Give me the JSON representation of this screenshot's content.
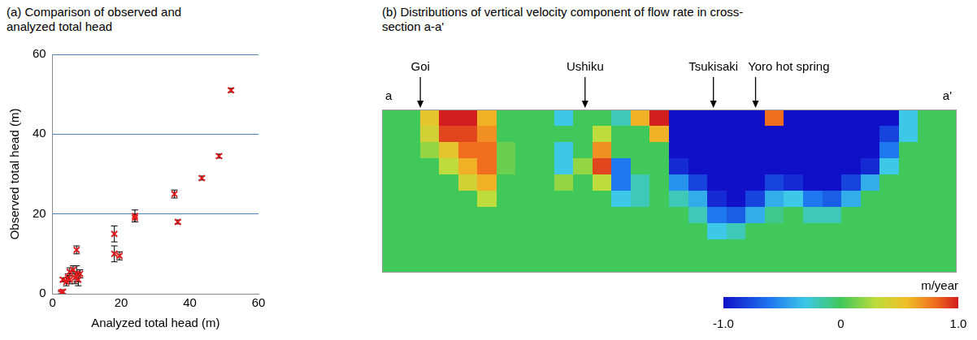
{
  "chart_data": [
    {
      "type": "scatter",
      "title": "(a) Comparison of observed and analyzed total head",
      "x_label": "Analyzed total head (m)",
      "y_label": "Observed total head (m)",
      "x": [
        52,
        48.5,
        43.5,
        35.5,
        36.5,
        24,
        24,
        18,
        18,
        19.5,
        7,
        7,
        6,
        5,
        5,
        4,
        3,
        3,
        2.5,
        6.5,
        4.5,
        7.5,
        8
      ],
      "values": [
        51,
        34.5,
        29,
        25,
        18,
        19.5,
        19,
        15,
        10,
        9.5,
        11,
        5,
        6,
        5.5,
        3.5,
        3,
        3.5,
        0.5,
        0.3,
        4,
        4,
        3.5,
        5
      ],
      "errors": [
        0.5,
        0.5,
        0.5,
        1,
        0.5,
        1.5,
        1,
        2,
        2,
        1,
        1,
        2,
        1,
        1,
        1,
        1,
        0.5,
        0.5,
        0.3,
        1.5,
        1,
        1.5,
        1
      ],
      "color": "#e31a1c",
      "marker": "x",
      "xlim": [
        0,
        60
      ],
      "ylim": [
        0,
        60
      ],
      "xticks": [
        0,
        20,
        40,
        60
      ],
      "yticks": [
        0,
        20,
        40,
        60
      ],
      "grid": "y"
    },
    {
      "type": "heatmap",
      "title": "(b) Distributions of vertical velocity component of flow rate in cross-section a-a'",
      "section_ends": [
        "a",
        "a'"
      ],
      "locations": [
        {
          "name": "Goi",
          "x": 2.0
        },
        {
          "name": "Ushiku",
          "x": 10.6
        },
        {
          "name": "Tsukisaki",
          "x": 17.3
        },
        {
          "name": "Yoro hot spring",
          "x": 19.5
        }
      ],
      "cells": [
        [
          0,
          0,
          0.5,
          1,
          1,
          0.6,
          0,
          0,
          0,
          -0.3,
          0,
          0,
          -0.2,
          0.6,
          1,
          -1,
          -1,
          -1,
          -1,
          -1,
          0.8,
          -1,
          -1,
          -1,
          -1,
          -1,
          -1,
          -0.3,
          0,
          0
        ],
        [
          0,
          0,
          0.4,
          0.9,
          0.9,
          0.7,
          0,
          0,
          0,
          0,
          0,
          0.3,
          0,
          0,
          0.6,
          -1,
          -1,
          -1,
          -1,
          -1,
          -1,
          -1,
          -1,
          -1,
          -1,
          -1,
          -0.8,
          -0.3,
          0,
          0
        ],
        [
          0,
          0,
          0.2,
          0.5,
          0.8,
          0.8,
          0.1,
          0,
          0,
          -0.3,
          0,
          0.7,
          0,
          0,
          0,
          -1,
          -1,
          -1,
          -1,
          -1,
          -1,
          -1,
          -1,
          -1,
          -1,
          -1,
          -0.6,
          0,
          0,
          0
        ],
        [
          0,
          0,
          0,
          0.3,
          0.6,
          0.8,
          0.1,
          0,
          0,
          -0.3,
          0.2,
          0.9,
          -0.6,
          0,
          0,
          -0.9,
          -1,
          -1,
          -1,
          -1,
          -1,
          -1,
          -1,
          -1,
          -1,
          -0.9,
          -0.3,
          0,
          0,
          0
        ],
        [
          0,
          0,
          0,
          0,
          0.4,
          0.6,
          0,
          0,
          0,
          0.2,
          0,
          0.3,
          -0.6,
          -0.2,
          0,
          -0.5,
          -0.8,
          -1,
          -1,
          -1,
          -0.8,
          -0.9,
          -1,
          -1,
          -0.8,
          -0.4,
          0,
          0,
          0,
          0
        ],
        [
          0,
          0,
          0,
          0,
          0,
          0.3,
          0,
          0,
          0,
          0,
          0,
          0,
          -0.3,
          -0.2,
          0,
          -0.2,
          -0.4,
          -0.9,
          -1,
          -0.8,
          -0.4,
          -0.3,
          -0.6,
          -0.7,
          -0.4,
          0,
          0,
          0,
          0,
          0
        ],
        [
          0,
          0,
          0,
          0,
          0,
          0,
          0,
          0,
          0,
          0,
          0,
          0,
          0,
          0,
          0,
          0,
          -0.2,
          -0.6,
          -0.7,
          -0.4,
          -0.1,
          0,
          -0.2,
          -0.2,
          0,
          0,
          0,
          0,
          0,
          0
        ],
        [
          0,
          0,
          0,
          0,
          0,
          0,
          0,
          0,
          0,
          0,
          0,
          0,
          0,
          0,
          0,
          0,
          0,
          -0.3,
          -0.2,
          0,
          0,
          0,
          0,
          0,
          0,
          0,
          0,
          0,
          0,
          0
        ],
        [
          0,
          0,
          0,
          0,
          0,
          0,
          0,
          0,
          0,
          0,
          0,
          0,
          0,
          0,
          0,
          0,
          0,
          0,
          0,
          0,
          0,
          0,
          0,
          0,
          0,
          0,
          0,
          0,
          0,
          0
        ],
        [
          0,
          0,
          0,
          0,
          0,
          0,
          0,
          0,
          0,
          0,
          0,
          0,
          0,
          0,
          0,
          0,
          0,
          0,
          0,
          0,
          0,
          0,
          0,
          0,
          0,
          0,
          0,
          0,
          0,
          0
        ]
      ],
      "colorbar": {
        "label": "m/year",
        "range": [
          -1,
          1
        ],
        "ticks": [
          {
            "value": -1,
            "label": "-1.0"
          },
          0,
          {
            "value": 1,
            "label": "1.0"
          }
        ]
      },
      "tick_labels": false
    }
  ]
}
